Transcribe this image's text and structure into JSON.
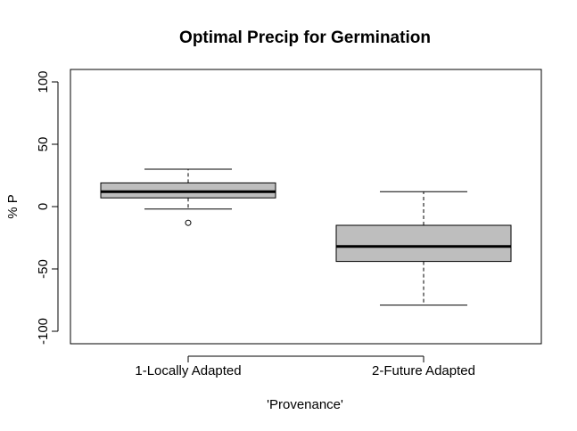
{
  "chart_data": {
    "type": "boxplot",
    "title": "Optimal Precip for Germination",
    "xlabel": "'Provenance'",
    "ylabel": "% P",
    "ylim": [
      -110,
      110
    ],
    "yticks": [
      -100,
      -50,
      0,
      50,
      100
    ],
    "grid": false,
    "box_fill": "#bebebe",
    "categories": [
      "1-Locally Adapted",
      "2-Future Adapted"
    ],
    "boxes": [
      {
        "category": "1-Locally Adapted",
        "whisker_low": -2,
        "q1": 7,
        "median": 12,
        "q3": 19,
        "whisker_high": 30,
        "outliers": [
          -13
        ]
      },
      {
        "category": "2-Future Adapted",
        "whisker_low": -79,
        "q1": -44,
        "median": -32,
        "q3": -15,
        "whisker_high": 12,
        "outliers": []
      }
    ]
  }
}
